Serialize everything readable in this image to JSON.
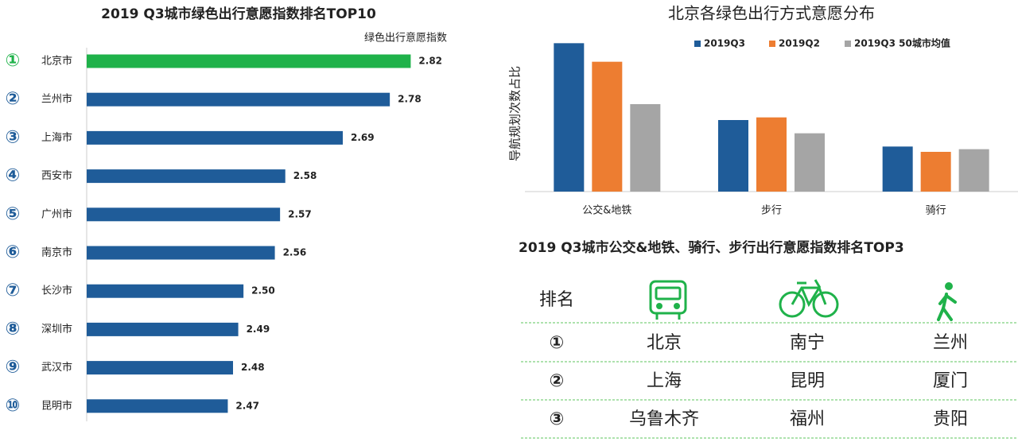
{
  "chart_data": [
    {
      "type": "bar",
      "orientation": "horizontal",
      "title": "2019 Q3城市绿色出行意愿指数排名TOP10",
      "axis_label": "绿色出行意愿指数",
      "ranks": [
        "①",
        "②",
        "③",
        "④",
        "⑤",
        "⑥",
        "⑦",
        "⑧",
        "⑨",
        "⑩"
      ],
      "categories": [
        "北京市",
        "兰州市",
        "上海市",
        "西安市",
        "广州市",
        "南京市",
        "长沙市",
        "深圳市",
        "武汉市",
        "昆明市"
      ],
      "values": [
        2.82,
        2.78,
        2.69,
        2.58,
        2.57,
        2.56,
        2.5,
        2.49,
        2.48,
        2.47
      ],
      "value_labels": [
        "2.82",
        "2.78",
        "2.69",
        "2.58",
        "2.57",
        "2.56",
        "2.50",
        "2.49",
        "2.48",
        "2.47"
      ],
      "colors": [
        "#1fb24a",
        "#1f5c99",
        "#1f5c99",
        "#1f5c99",
        "#1f5c99",
        "#1f5c99",
        "#1f5c99",
        "#1f5c99",
        "#1f5c99",
        "#1f5c99"
      ],
      "rank_colors": [
        "#1fb24a",
        "#1f5c99",
        "#1f5c99",
        "#1f5c99",
        "#1f5c99",
        "#1f5c99",
        "#1f5c99",
        "#1f5c99",
        "#1f5c99",
        "#1f5c99"
      ],
      "xlim": [
        2.2,
        2.9
      ]
    },
    {
      "type": "bar",
      "orientation": "vertical",
      "title": "北京各绿色出行方式意愿分布",
      "ylabel": "导航规划次数占比",
      "categories": [
        "公交&地铁",
        "步行",
        "骑行"
      ],
      "series": [
        {
          "name": "2019Q3",
          "color": "#1f5c99",
          "values": [
            56,
            27,
            17
          ]
        },
        {
          "name": "2019Q2",
          "color": "#ed7d31",
          "values": [
            49,
            28,
            15
          ]
        },
        {
          "name": "2019Q3 50城市均值",
          "color": "#a5a5a5",
          "values": [
            33,
            22,
            16
          ]
        }
      ],
      "ylim": [
        0,
        60
      ],
      "legend": "top"
    }
  ],
  "table": {
    "title": "2019 Q3城市公交&地铁、骑行、步行出行意愿指数排名TOP3",
    "header": "排名",
    "rows": [
      [
        "①",
        "北京",
        "南宁",
        "兰州"
      ],
      [
        "②",
        "上海",
        "昆明",
        "厦门"
      ],
      [
        "③",
        "乌鲁木齐",
        "福州",
        "贵阳"
      ]
    ]
  }
}
